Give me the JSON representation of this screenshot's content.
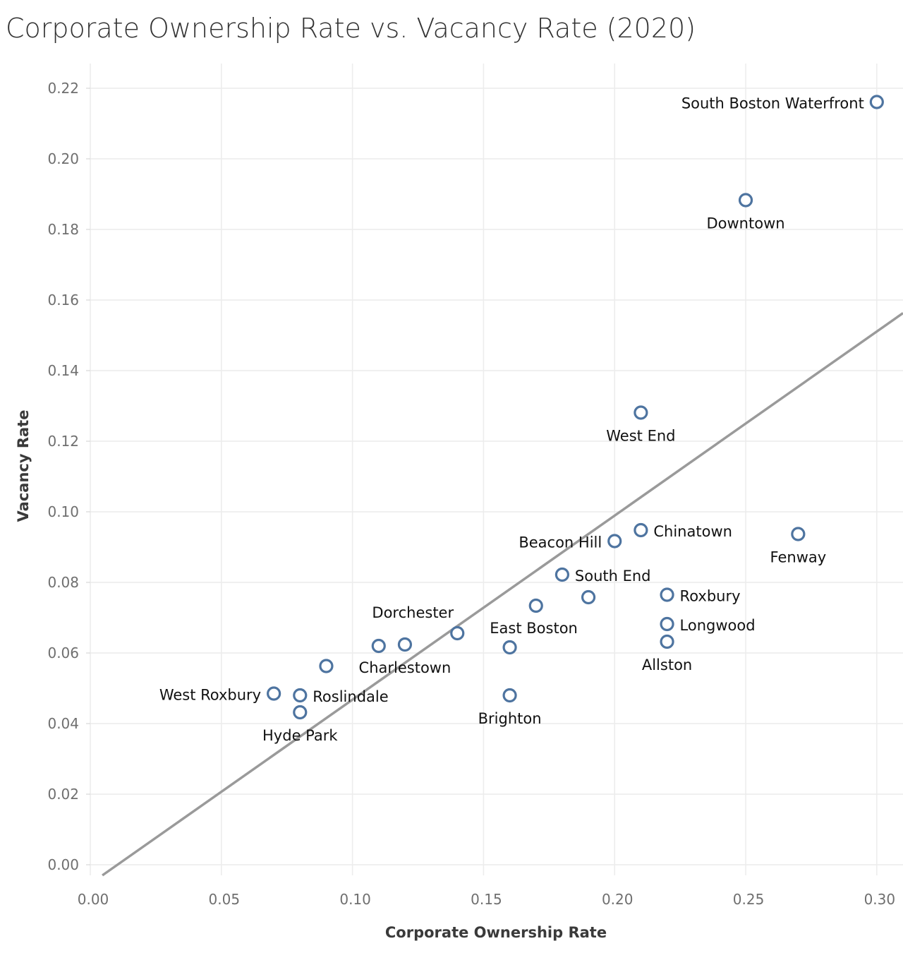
{
  "colors": {
    "point": "#4e74a0",
    "trend": "#9a9a9a",
    "grid": "#ececec"
  },
  "chart_data": {
    "type": "scatter",
    "title": "Corporate Ownership Rate vs. Vacancy Rate (2020)",
    "xlabel": "Corporate Ownership Rate",
    "ylabel": "Vacancy Rate",
    "xlim": [
      0.0,
      0.31
    ],
    "ylim": [
      -0.003,
      0.227
    ],
    "xticks": [
      0.0,
      0.05,
      0.1,
      0.15,
      0.2,
      0.25,
      0.3
    ],
    "xtick_labels": [
      "0.00",
      "0.05",
      "0.10",
      "0.15",
      "0.20",
      "0.25",
      "0.30"
    ],
    "yticks": [
      0.0,
      0.02,
      0.04,
      0.06,
      0.08,
      0.1,
      0.12,
      0.14,
      0.16,
      0.18,
      0.2,
      0.22
    ],
    "ytick_labels": [
      "0.00",
      "0.02",
      "0.04",
      "0.06",
      "0.08",
      "0.10",
      "0.12",
      "0.14",
      "0.16",
      "0.18",
      "0.20",
      "0.22"
    ],
    "grid": true,
    "trend_line": {
      "slope": 0.5216,
      "intercept": -0.0054
    },
    "points": [
      {
        "name": "South Boston Waterfront",
        "x": 0.3,
        "y": 0.2161,
        "label_pos": "left"
      },
      {
        "name": "Downtown",
        "x": 0.25,
        "y": 0.1883,
        "label_pos": "below"
      },
      {
        "name": "West End",
        "x": 0.21,
        "y": 0.1281,
        "label_pos": "below"
      },
      {
        "name": "Chinatown",
        "x": 0.21,
        "y": 0.0948,
        "label_pos": "right"
      },
      {
        "name": "Beacon Hill",
        "x": 0.2,
        "y": 0.0917,
        "label_pos": "left"
      },
      {
        "name": "Fenway",
        "x": 0.27,
        "y": 0.0937,
        "label_pos": "below"
      },
      {
        "name": "South End",
        "x": 0.18,
        "y": 0.0822,
        "label_pos": "right"
      },
      {
        "name": "",
        "x": 0.19,
        "y": 0.0758,
        "label_pos": "none"
      },
      {
        "name": "",
        "x": 0.17,
        "y": 0.0734,
        "label_pos": "none"
      },
      {
        "name": "Roxbury",
        "x": 0.22,
        "y": 0.0765,
        "label_pos": "right"
      },
      {
        "name": "Longwood",
        "x": 0.22,
        "y": 0.0682,
        "label_pos": "right"
      },
      {
        "name": "Allston",
        "x": 0.22,
        "y": 0.0632,
        "label_pos": "below"
      },
      {
        "name": "Dorchester",
        "x": 0.14,
        "y": 0.0656,
        "label_pos": "above-left"
      },
      {
        "name": "East Boston",
        "x": 0.16,
        "y": 0.0616,
        "label_pos": "above-right"
      },
      {
        "name": "",
        "x": 0.11,
        "y": 0.062,
        "label_pos": "none"
      },
      {
        "name": "Charlestown",
        "x": 0.12,
        "y": 0.0624,
        "label_pos": "below"
      },
      {
        "name": "",
        "x": 0.09,
        "y": 0.0563,
        "label_pos": "none"
      },
      {
        "name": "Brighton",
        "x": 0.16,
        "y": 0.048,
        "label_pos": "below"
      },
      {
        "name": "West Roxbury",
        "x": 0.07,
        "y": 0.0485,
        "label_pos": "left"
      },
      {
        "name": "Roslindale",
        "x": 0.08,
        "y": 0.048,
        "label_pos": "right-low"
      },
      {
        "name": "Hyde Park",
        "x": 0.08,
        "y": 0.0432,
        "label_pos": "below"
      }
    ]
  }
}
